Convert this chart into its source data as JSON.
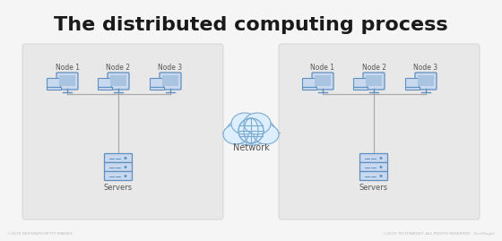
{
  "title": "The distributed computing process",
  "title_fontsize": 16,
  "title_fontweight": "bold",
  "bg_color": "#f5f5f5",
  "panel_color": "#e8e8e8",
  "node_color_fill": "#c8d8ee",
  "node_color_edge": "#6090c0",
  "cloud_fill": "#ddeeff",
  "cloud_edge": "#7aaad0",
  "network_label": "Network",
  "servers_label": "Servers",
  "nodes": [
    "Node 1",
    "Node 2",
    "Node 3"
  ],
  "footer_left": "©2019 DESIGNER/GETTY IMAGES",
  "footer_right": "©2019 TECHTARGET. ALL RIGHTS RESERVED.  TechTarget"
}
